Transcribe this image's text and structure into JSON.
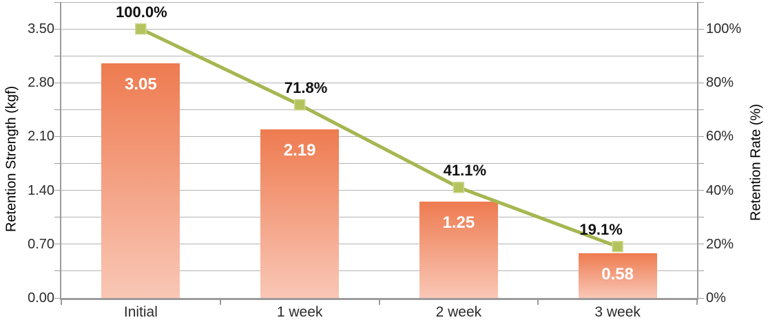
{
  "chart_data": {
    "type": "combo-bar-line",
    "title": "",
    "categories": [
      "Initial",
      "1 week",
      "2 week",
      "3 week"
    ],
    "series": [
      {
        "name": "Retention Strength",
        "type": "bar",
        "axis": "left",
        "values": [
          3.05,
          2.19,
          1.25,
          0.58
        ],
        "data_labels": [
          "3.05",
          "2.19",
          "1.25",
          "0.58"
        ]
      },
      {
        "name": "Retention Rate",
        "type": "line",
        "axis": "right",
        "values": [
          100.0,
          71.8,
          41.1,
          19.1
        ],
        "data_labels": [
          "100.0%",
          "71.8%",
          "41.1%",
          "19.1%"
        ],
        "label_dx": [
          1,
          9,
          9,
          -24
        ],
        "label_dy": -24
      }
    ],
    "left_axis": {
      "title": "Retention Strength (kgf)",
      "min": 0,
      "max": 3.85,
      "label_interval": 0.7,
      "grid_interval": 0.35,
      "tick_labels": [
        "0.00",
        "0.70",
        "1.40",
        "2.10",
        "2.80",
        "3.50"
      ]
    },
    "right_axis": {
      "title": "Retention Rate (%)",
      "min": 0,
      "max": 110,
      "label_interval": 20,
      "grid_interval": 10,
      "tick_labels": [
        "0%",
        "20%",
        "40%",
        "60%",
        "80%",
        "100%"
      ]
    },
    "grid": true,
    "legend": "none",
    "colors": {
      "bar_top": "#ee7b50",
      "bar_bottom": "#f9c7b6",
      "bar_label": "#ffffff",
      "line": "#a5b751",
      "marker": "#b5c35f",
      "marker_edge": "#cdd88e",
      "grid": "#b3b3b3",
      "axis": "#9b9b9b",
      "text": "#2b2b2b",
      "point_label": "#111111"
    }
  }
}
